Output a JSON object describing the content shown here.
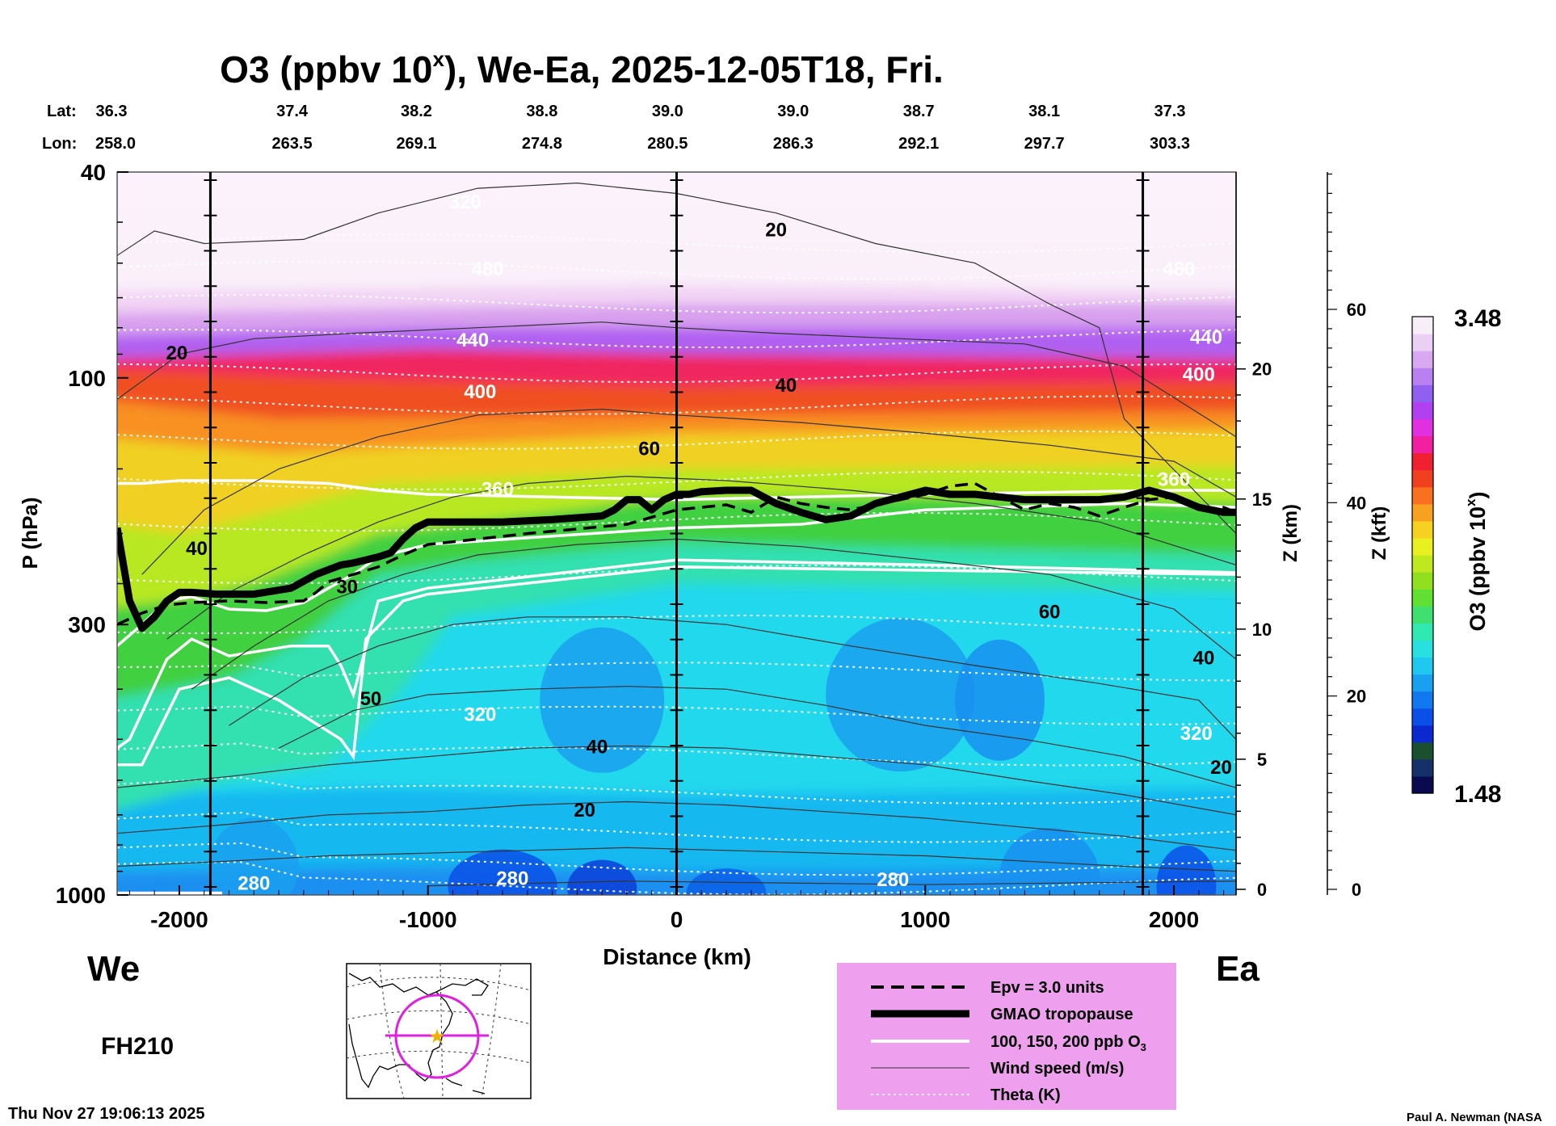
{
  "chart_data": {
    "type": "heatmap",
    "title_prefix": "O3 (ppbv 10",
    "title_sup": "x",
    "title_suffix": "), We-Ea, 2025-12-05T18, Fri.",
    "lat_label": "Lat:",
    "lon_label": "Lon:",
    "lats": [
      "36.3",
      "37.4",
      "38.2",
      "38.8",
      "39.0",
      "39.0",
      "38.7",
      "38.1",
      "37.3"
    ],
    "lons": [
      "258.0",
      "263.5",
      "269.1",
      "274.8",
      "280.5",
      "286.3",
      "292.1",
      "297.7",
      "303.3"
    ],
    "coord_distances_km": [
      -2250,
      -1725,
      -1225,
      -720,
      -215,
      290,
      795,
      1300,
      1805
    ],
    "xlabel": "Distance (km)",
    "ylabel": "P (hPa)",
    "xlim": [
      -2250,
      2250
    ],
    "ylim_hpa": [
      1000,
      40
    ],
    "x_ticks": [
      -2000,
      -1000,
      0,
      1000,
      2000
    ],
    "x_tick_labels": [
      "-2000",
      "-1000",
      "0",
      "1000",
      "2000"
    ],
    "y_ticks_hpa": [
      40,
      100,
      300,
      1000
    ],
    "y_tick_labels": [
      "40",
      "100",
      "300",
      "1000"
    ],
    "z_km_ticks": [
      0,
      5,
      10,
      15,
      20
    ],
    "z_km_labels": [
      "0",
      "5",
      "10",
      "15",
      "20"
    ],
    "z_km_axis_label": "Z (km)",
    "z_kft_ticks": [
      0,
      20,
      40,
      60
    ],
    "z_kft_labels": [
      "0",
      "20",
      "40",
      "60"
    ],
    "z_kft_axis_label": "Z (kft)",
    "vertical_lines_km": [
      -1875,
      0,
      1875
    ],
    "left_label": "We",
    "right_label": "Ea",
    "forecast_hour": "FH210",
    "colorbar": {
      "min": "1.48",
      "max": "3.48",
      "label_prefix": "O3 (ppbv 10",
      "label_sup": "x",
      "label_suffix": ")",
      "colors": [
        "#0a0a50",
        "#16306a",
        "#1a5030",
        "#0a2ad0",
        "#0a50e8",
        "#1278f0",
        "#1aa0f0",
        "#20c8f0",
        "#28e0e0",
        "#30e8b0",
        "#40e070",
        "#60e030",
        "#90e020",
        "#c0e820",
        "#e8f020",
        "#f8d020",
        "#f8a020",
        "#f87020",
        "#f04020",
        "#f02030",
        "#f020a0",
        "#e030e0",
        "#b040f0",
        "#9060f0",
        "#b880f0",
        "#d8a8f0",
        "#ecd0f4",
        "#f8eef8"
      ]
    },
    "wind_contour_labels": [
      {
        "text": "20",
        "x": -2010,
        "p": 90
      },
      {
        "text": "20",
        "x": 400,
        "p": 52
      },
      {
        "text": "40",
        "x": 440,
        "p": 104
      },
      {
        "text": "60",
        "x": -110,
        "p": 138
      },
      {
        "text": "40",
        "x": -1930,
        "p": 215
      },
      {
        "text": "30",
        "x": -1325,
        "p": 255
      },
      {
        "text": "60",
        "x": 1500,
        "p": 285
      },
      {
        "text": "40",
        "x": 2120,
        "p": 350
      },
      {
        "text": "50",
        "x": -1230,
        "p": 420
      },
      {
        "text": "40",
        "x": -320,
        "p": 520
      },
      {
        "text": "20",
        "x": -370,
        "p": 690
      },
      {
        "text": "20",
        "x": 2190,
        "p": 570
      }
    ],
    "theta_contour_labels": [
      {
        "text": "320",
        "x": -850,
        "p": 46
      },
      {
        "text": "480",
        "x": -760,
        "p": 62
      },
      {
        "text": "480",
        "x": 2020,
        "p": 62
      },
      {
        "text": "440",
        "x": -820,
        "p": 85
      },
      {
        "text": "440",
        "x": 2130,
        "p": 84
      },
      {
        "text": "400",
        "x": -790,
        "p": 107
      },
      {
        "text": "400",
        "x": 2100,
        "p": 99
      },
      {
        "text": "360",
        "x": -720,
        "p": 165
      },
      {
        "text": "360",
        "x": 2000,
        "p": 158
      },
      {
        "text": "320",
        "x": -790,
        "p": 450
      },
      {
        "text": "320",
        "x": 2090,
        "p": 490
      },
      {
        "text": "280",
        "x": -1700,
        "p": 955
      },
      {
        "text": "280",
        "x": -660,
        "p": 935
      },
      {
        "text": "280",
        "x": 870,
        "p": 940
      }
    ],
    "gmao_tropopause": {
      "x": [
        -2250,
        -2200,
        -2150,
        -2100,
        -2050,
        -2000,
        -1950,
        -1850,
        -1700,
        -1550,
        -1450,
        -1400,
        -1350,
        -1300,
        -1250,
        -1200,
        -1150,
        -1100,
        -1050,
        -1000,
        -900,
        -700,
        -500,
        -300,
        -250,
        -200,
        -150,
        -100,
        -50,
        0,
        50,
        100,
        200,
        300,
        400,
        500,
        600,
        700,
        800,
        900,
        1000,
        1100,
        1200,
        1300,
        1400,
        1500,
        1600,
        1700,
        1800,
        1900,
        2000,
        2100,
        2200,
        2250
      ],
      "p": [
        195,
        270,
        305,
        290,
        270,
        260,
        260,
        262,
        262,
        255,
        240,
        235,
        230,
        228,
        225,
        222,
        218,
        205,
        195,
        190,
        190,
        190,
        188,
        185,
        180,
        172,
        172,
        180,
        172,
        168,
        168,
        166,
        165,
        165,
        175,
        182,
        188,
        185,
        175,
        170,
        165,
        168,
        168,
        170,
        172,
        172,
        172,
        172,
        170,
        165,
        170,
        178,
        182,
        182
      ]
    },
    "epv_3": {
      "x": [
        -2250,
        -2150,
        -2050,
        -1950,
        -1800,
        -1650,
        -1500,
        -1450,
        -1400,
        -1300,
        -1200,
        -1100,
        -1000,
        -800,
        -600,
        -400,
        -200,
        -100,
        0,
        100,
        200,
        300,
        400,
        500,
        600,
        700,
        800,
        900,
        1000,
        1100,
        1200,
        1300,
        1400,
        1500,
        1600,
        1700,
        1800,
        1900,
        2000,
        2100,
        2200,
        2250
      ],
      "p": [
        300,
        285,
        275,
        272,
        270,
        272,
        270,
        260,
        248,
        240,
        232,
        220,
        210,
        205,
        200,
        196,
        192,
        186,
        180,
        178,
        176,
        182,
        170,
        175,
        178,
        180,
        176,
        172,
        168,
        162,
        160,
        170,
        180,
        175,
        178,
        185,
        178,
        172,
        170,
        180,
        178,
        182
      ]
    },
    "legend": {
      "epv": "Epv = 3.0 units",
      "tropopause": "GMAO tropopause",
      "ozone_contours": "100, 150, 200 ppb O",
      "ozone_sub": "3",
      "wind": "Wind speed (m/s)",
      "theta": "Theta (K)"
    },
    "timestamp": "Thu Nov 27 19:06:13 2025",
    "credit": "Paul A. Newman (NASA"
  }
}
